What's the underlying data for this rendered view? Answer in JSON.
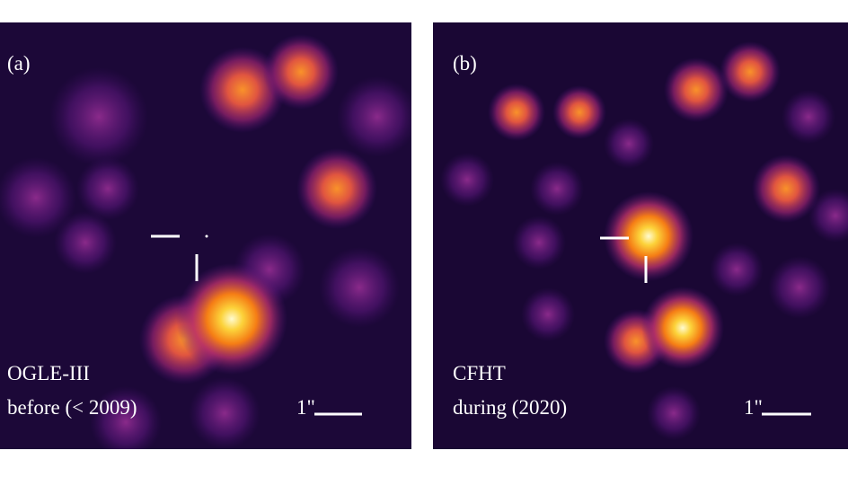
{
  "panels": [
    {
      "label": "(a)",
      "telescope": "OGLE-III",
      "epoch": "before (< 2009)",
      "scale_label": "1\""
    },
    {
      "label": "(b)",
      "telescope": "CFHT",
      "epoch": "during (2020)",
      "scale_label": "1\""
    }
  ]
}
